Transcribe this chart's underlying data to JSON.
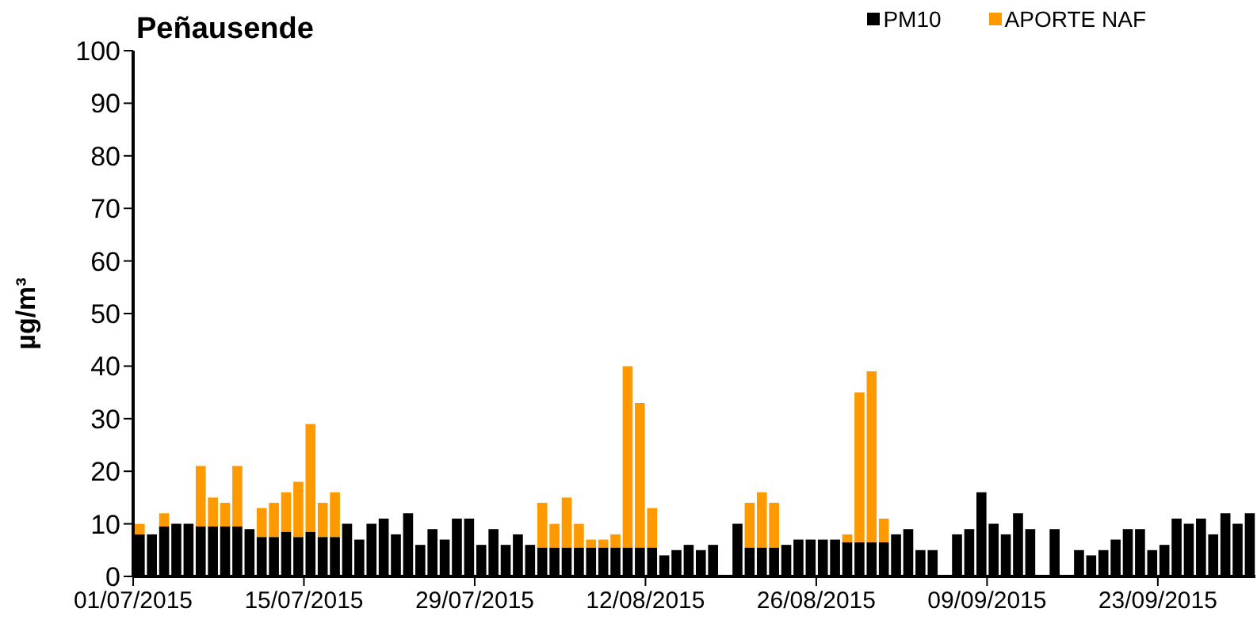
{
  "chart_data": {
    "type": "bar",
    "title": "Peñausende",
    "ylabel": "µg/m³",
    "stacked": true,
    "legend": "top right",
    "grid": false,
    "categories": [
      "01/07/2015",
      null,
      null,
      null,
      null,
      null,
      null,
      null,
      null,
      null,
      null,
      null,
      null,
      null,
      "15/07/2015",
      null,
      null,
      null,
      null,
      null,
      null,
      null,
      null,
      null,
      null,
      null,
      null,
      null,
      "29/07/2015",
      null,
      null,
      null,
      null,
      null,
      null,
      null,
      null,
      null,
      null,
      null,
      null,
      null,
      "12/08/2015",
      null,
      null,
      null,
      null,
      null,
      null,
      null,
      null,
      null,
      null,
      null,
      null,
      null,
      "26/08/2015",
      null,
      null,
      null,
      null,
      null,
      null,
      null,
      null,
      null,
      null,
      null,
      null,
      null,
      "09/09/2015",
      null,
      null,
      null,
      null,
      null,
      null,
      null,
      null,
      null,
      null,
      null,
      null,
      null,
      "23/09/2015",
      null,
      null,
      null,
      null,
      null,
      null,
      null
    ],
    "ylim": [
      0,
      100
    ],
    "yticks": [
      0,
      10,
      20,
      30,
      40,
      50,
      60,
      70,
      80,
      90,
      100
    ],
    "series": [
      {
        "name": "PM10",
        "color": "#000000",
        "values": [
          8,
          8,
          9.5,
          10,
          10,
          9.5,
          9.5,
          9.5,
          9.5,
          9,
          7.5,
          7.5,
          8.5,
          7.5,
          8.5,
          7.5,
          7.5,
          10,
          7,
          10,
          11,
          8,
          12,
          6,
          9,
          7,
          11,
          11,
          6,
          9,
          6,
          8,
          6,
          5.5,
          5.5,
          5.5,
          5.5,
          5.5,
          5.5,
          5.5,
          5.5,
          5.5,
          5.5,
          4,
          5,
          6,
          5,
          6,
          null,
          10,
          5.5,
          5.5,
          5.5,
          6,
          7,
          7,
          7,
          7,
          6.5,
          6.5,
          6.5,
          6.5,
          8,
          9,
          5,
          5,
          null,
          8,
          9,
          16,
          10,
          8,
          12,
          9,
          null,
          9,
          null,
          5,
          4,
          5,
          7,
          9,
          9,
          5,
          6,
          11,
          10,
          11,
          8,
          12,
          10,
          12
        ]
      },
      {
        "name": "APORTE NAF",
        "color": "#ff9900",
        "values": [
          2,
          null,
          2.5,
          null,
          null,
          11.5,
          5.5,
          4.5,
          11.5,
          null,
          5.5,
          6.5,
          7.5,
          10.5,
          20.5,
          6.5,
          8.5,
          null,
          null,
          null,
          null,
          null,
          null,
          null,
          null,
          null,
          null,
          null,
          null,
          null,
          null,
          null,
          null,
          8.5,
          4.5,
          9.5,
          4.5,
          1.5,
          1.5,
          2.5,
          34.5,
          27.5,
          7.5,
          null,
          null,
          null,
          null,
          null,
          null,
          null,
          8.5,
          10.5,
          8.5,
          null,
          null,
          null,
          null,
          null,
          1.5,
          28.5,
          32.5,
          4.5,
          null,
          null,
          null,
          null,
          null,
          null,
          null,
          null,
          null,
          null,
          null,
          null,
          null,
          null,
          null,
          null,
          null,
          null,
          null,
          null,
          null,
          null,
          null,
          null,
          null,
          null,
          null,
          null,
          null,
          null
        ]
      }
    ]
  }
}
